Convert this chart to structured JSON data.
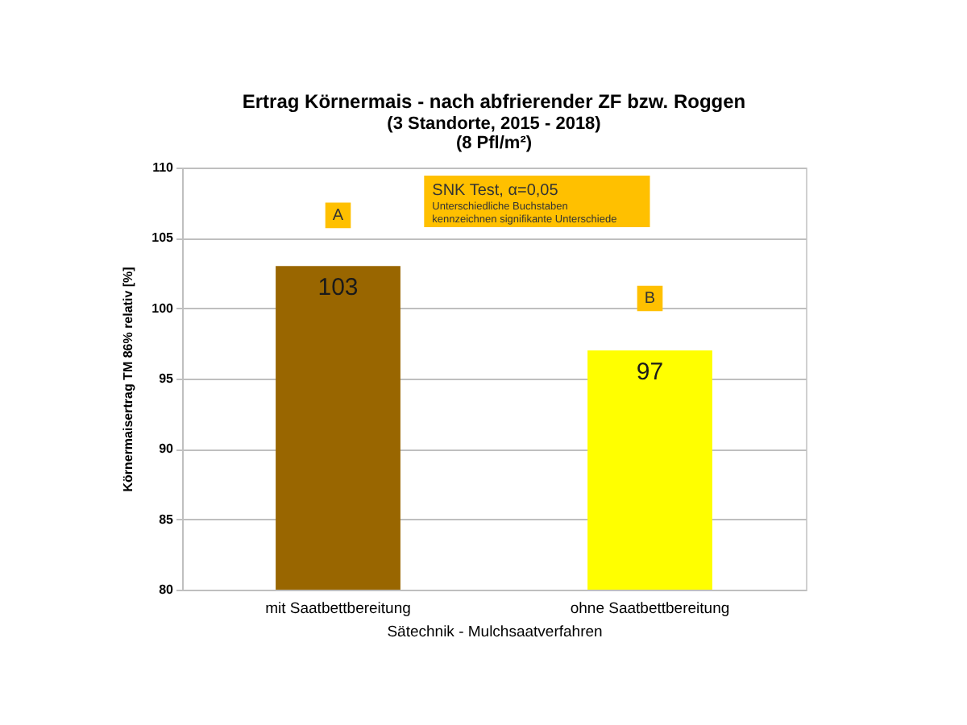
{
  "chart_data": {
    "type": "bar",
    "title": "Ertrag Körnermais - nach abfrierender ZF bzw. Roggen",
    "subtitle": "(3 Standorte, 2015 - 2018)\n(8 Pfl/m²)",
    "xlabel": "Sätechnik - Mulchsaatverfahren",
    "ylabel": "Körnermaisertrag TM 86% relativ [%]",
    "categories": [
      "mit Saatbettbereitung",
      "ohne Saatbettbereitung"
    ],
    "values": [
      103,
      97
    ],
    "colors": [
      "#996600",
      "#ffff00"
    ],
    "ylim": [
      80,
      110
    ],
    "yticks": [
      80,
      85,
      90,
      95,
      100,
      105,
      110
    ],
    "grid": "y",
    "data_labels": true,
    "annotations": [
      {
        "text": "A",
        "x": "mit Saatbettbereitung",
        "y": 106.6
      },
      {
        "text": "B",
        "x": "ohne Saatbettbereitung",
        "y": 100.7
      },
      "SNK Test, α=0,05",
      "Unterschiedliche Buchstaben kennzeichnen signifikante Unterschiede"
    ]
  }
}
